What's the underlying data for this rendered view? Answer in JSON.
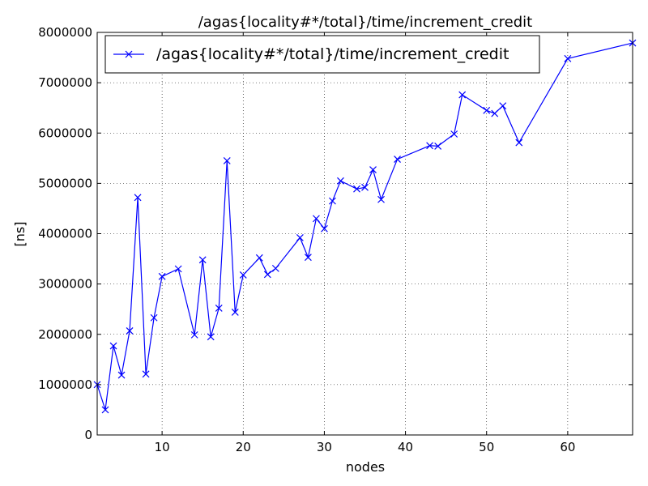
{
  "chart_data": {
    "type": "line",
    "title": "/agas{locality#*/total}/time/increment_credit",
    "xlabel": "nodes",
    "ylabel": "[ns]",
    "xlim": [
      2,
      68
    ],
    "ylim": [
      0,
      8000000
    ],
    "xticks": [
      10,
      20,
      30,
      40,
      50,
      60
    ],
    "yticks": [
      0,
      1000000,
      2000000,
      3000000,
      4000000,
      5000000,
      6000000,
      7000000,
      8000000
    ],
    "xtick_labels": [
      "10",
      "20",
      "30",
      "40",
      "50",
      "60"
    ],
    "ytick_labels": [
      "0",
      "1000000",
      "2000000",
      "3000000",
      "4000000",
      "5000000",
      "6000000",
      "7000000",
      "8000000"
    ],
    "grid": true,
    "legend_position": "top-left",
    "series": [
      {
        "name": "/agas{locality#*/total}/time/increment_credit",
        "color": "#0000ff",
        "marker": "x",
        "x": [
          2,
          3,
          4,
          5,
          6,
          7,
          8,
          9,
          10,
          12,
          14,
          15,
          16,
          17,
          18,
          19,
          20,
          22,
          23,
          24,
          27,
          28,
          29,
          30,
          31,
          32,
          34,
          35,
          36,
          37,
          39,
          43,
          44,
          46,
          47,
          50,
          51,
          52,
          54,
          60,
          68
        ],
        "y": [
          1000000,
          500000,
          1770000,
          1190000,
          2070000,
          4720000,
          1210000,
          2330000,
          3150000,
          3300000,
          1990000,
          3480000,
          1950000,
          2520000,
          5450000,
          2440000,
          3180000,
          3520000,
          3190000,
          3310000,
          3920000,
          3530000,
          4300000,
          4100000,
          4650000,
          5050000,
          4890000,
          4920000,
          5270000,
          4680000,
          5480000,
          5750000,
          5740000,
          5980000,
          6760000,
          6450000,
          6390000,
          6540000,
          5810000,
          7480000,
          7790000
        ]
      }
    ]
  }
}
